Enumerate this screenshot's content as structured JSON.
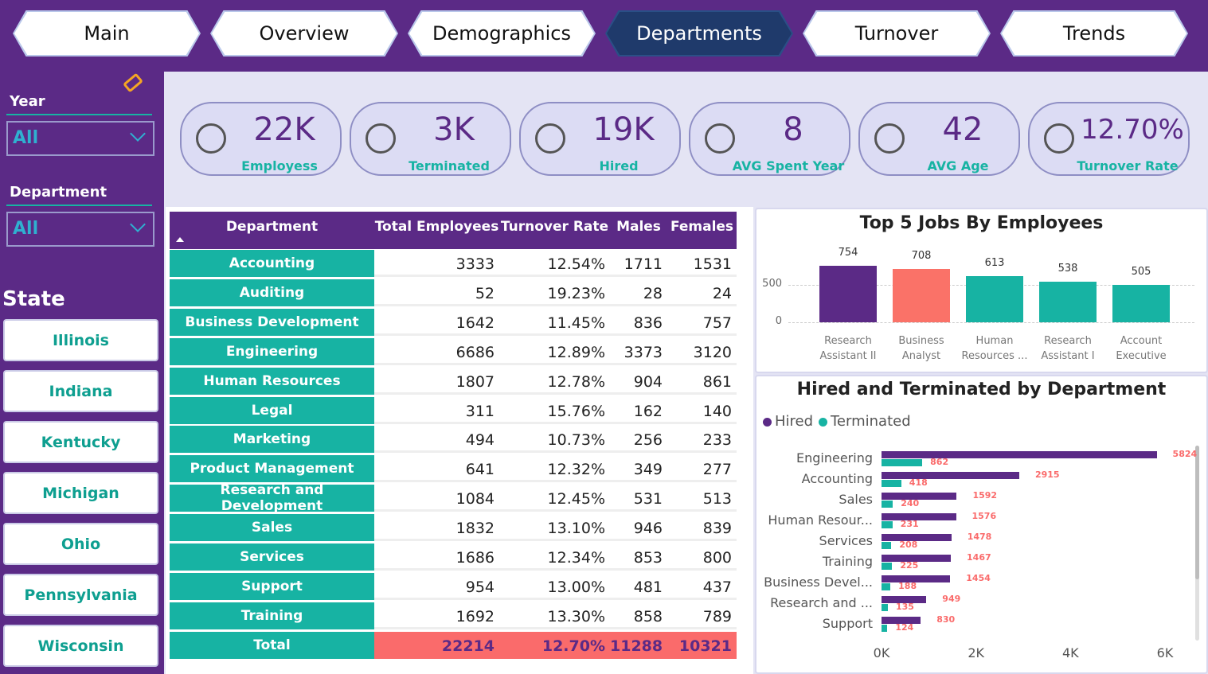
{
  "nav": {
    "tabs": [
      "Main",
      "Overview",
      "Demographics",
      "Departments",
      "Turnover",
      "Trends"
    ],
    "active": 3
  },
  "filters": [
    {
      "label": "Year",
      "value": "All"
    },
    {
      "label": "Department",
      "value": "All"
    }
  ],
  "state": {
    "title": "State",
    "items": [
      "Illinois",
      "Indiana",
      "Kentucky",
      "Michigan",
      "Ohio",
      "Pennsylvania",
      "Wisconsin"
    ]
  },
  "kpis": [
    {
      "value": "22K",
      "label": "Employess"
    },
    {
      "value": "3K",
      "label": "Terminated"
    },
    {
      "value": "19K",
      "label": "Hired"
    },
    {
      "value": "8",
      "label": "AVG Spent Year"
    },
    {
      "value": "42",
      "label": "AVG Age"
    },
    {
      "value": "12.70%",
      "label": "Turnover Rate"
    }
  ],
  "table": {
    "header": [
      "Department",
      "Total Employees",
      "Turnover Rate",
      "Males",
      "Females"
    ],
    "rows": [
      [
        "Accounting",
        "3333",
        "12.54%",
        "1711",
        "1531"
      ],
      [
        "Auditing",
        "52",
        "19.23%",
        "28",
        "24"
      ],
      [
        "Business Development",
        "1642",
        "11.45%",
        "836",
        "757"
      ],
      [
        "Engineering",
        "6686",
        "12.89%",
        "3373",
        "3120"
      ],
      [
        "Human Resources",
        "1807",
        "12.78%",
        "904",
        "861"
      ],
      [
        "Legal",
        "311",
        "15.76%",
        "162",
        "140"
      ],
      [
        "Marketing",
        "494",
        "10.73%",
        "256",
        "233"
      ],
      [
        "Product Management",
        "641",
        "12.32%",
        "349",
        "277"
      ],
      [
        "Research and Development",
        "1084",
        "12.45%",
        "531",
        "513"
      ],
      [
        "Sales",
        "1832",
        "13.10%",
        "946",
        "839"
      ],
      [
        "Services",
        "1686",
        "12.34%",
        "853",
        "800"
      ],
      [
        "Support",
        "954",
        "13.00%",
        "481",
        "437"
      ],
      [
        "Training",
        "1692",
        "13.30%",
        "858",
        "789"
      ]
    ],
    "total": [
      "Total",
      "22214",
      "12.70%",
      "11288",
      "10321"
    ]
  },
  "chart_data": [
    {
      "type": "bar",
      "title": "Top 5 Jobs By Employees",
      "categories": [
        "Research Assistant II",
        "Business Analyst",
        "Human Resources ...",
        "Research Assistant I",
        "Account Executive"
      ],
      "values": [
        754,
        708,
        613,
        538,
        505
      ],
      "colors": [
        "#5b2a86",
        "#fa7268",
        "#17b3a3",
        "#17b3a3",
        "#17b3a3"
      ],
      "ylim": [
        0,
        1000
      ],
      "yticks": [
        0,
        500
      ],
      "grid": true
    },
    {
      "type": "hbar",
      "title": "Hired and Terminated by Department",
      "categories": [
        "Engineering",
        "Accounting",
        "Sales",
        "Human Resour...",
        "Services",
        "Training",
        "Business Devel...",
        "Research and ...",
        "Support"
      ],
      "series": [
        {
          "name": "Hired",
          "color": "#5b2a86",
          "values": [
            5824,
            2915,
            1592,
            1576,
            1478,
            1467,
            1454,
            949,
            830
          ]
        },
        {
          "name": "Terminated",
          "color": "#17b3a3",
          "values": [
            862,
            418,
            240,
            231,
            208,
            225,
            188,
            135,
            124
          ]
        }
      ],
      "xlim": [
        0,
        6000
      ],
      "xticks": [
        {
          "value": 0,
          "label": "0K"
        },
        {
          "value": 2000,
          "label": "2K"
        },
        {
          "value": 4000,
          "label": "4K"
        },
        {
          "value": 6000,
          "label": "6K"
        }
      ],
      "label_color": "#fa6b6b"
    }
  ]
}
